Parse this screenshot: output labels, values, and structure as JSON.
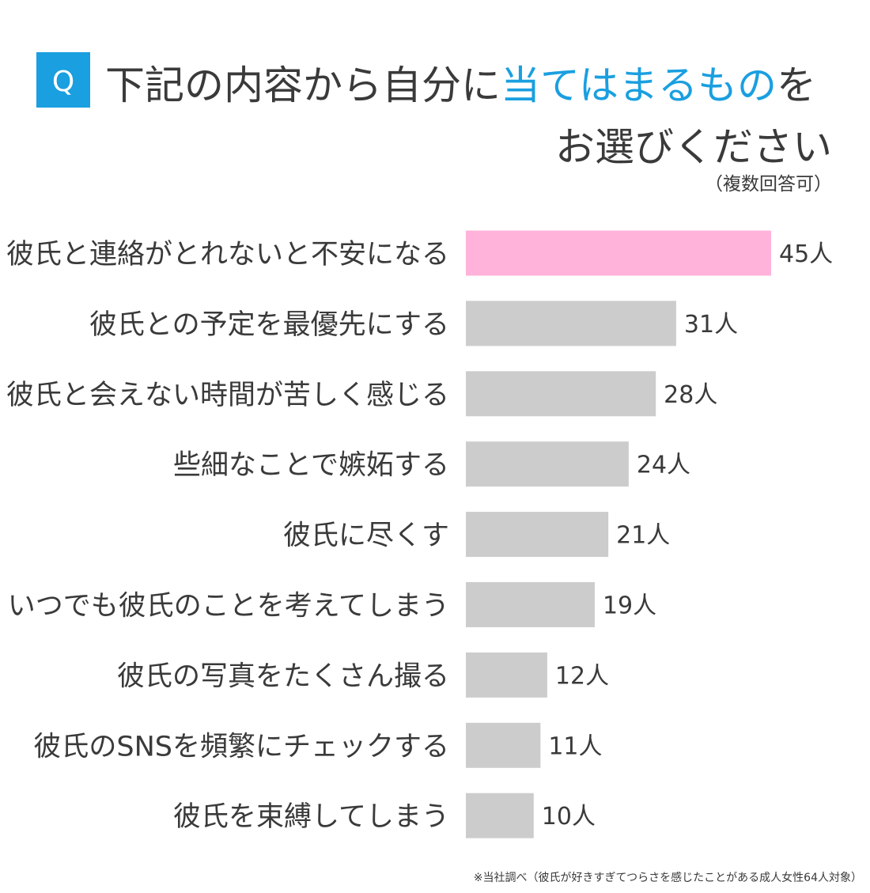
{
  "chart_data": {
    "type": "bar",
    "orientation": "horizontal",
    "badge": "Q",
    "title_line1": [
      "下記の内容から自分に",
      "当てはまるもの",
      "を"
    ],
    "title_line2": "お選びください",
    "highlight_color": "#1a9fe0",
    "subtitle": "（複数回答可）",
    "categories": [
      "彼氏と連絡がとれないと不安になる",
      "彼氏との予定を最優先にする",
      "彼氏と会えない時間が苦しく感じる",
      "些細なことで嫉妬する",
      "彼氏に尽くす",
      "いつでも彼氏のことを考えてしまう",
      "彼氏の写真をたくさん撮る",
      "彼氏のSNSを頻繁にチェックする",
      "彼氏を束縛してしまう"
    ],
    "values": [
      45,
      31,
      28,
      24,
      21,
      19,
      12,
      11,
      10
    ],
    "value_labels": [
      "45人",
      "31人",
      "28人",
      "24人",
      "21人",
      "19人",
      "12人",
      "11人",
      "10人"
    ],
    "colors": [
      "#ffb3da",
      "#cccccc",
      "#cccccc",
      "#cccccc",
      "#cccccc",
      "#cccccc",
      "#cccccc",
      "#cccccc",
      "#cccccc"
    ],
    "footnote": "※当社調べ（彼氏が好きすぎてつらさを感じたことがある成人女性64人対象）"
  }
}
